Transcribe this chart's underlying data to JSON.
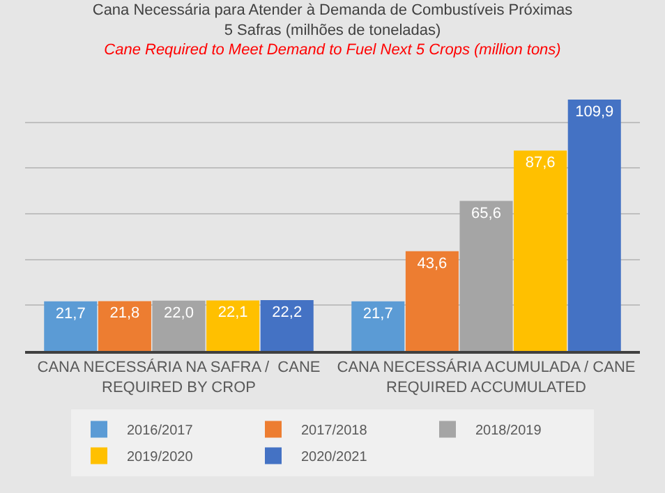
{
  "chart_data": {
    "type": "bar",
    "title": "Cana Necessária para Atender à Demanda de Combustíveis Próximas\n5 Safras (milhões de toneladas)",
    "subtitle": "Cane Required to Meet Demand to Fuel Next 5 Crops (million tons)",
    "categories": [
      "CANA NECESSÁRIA NA SAFRA /  CANE\nREQUIRED BY CROP",
      "CANA NECESSÁRIA ACUMULADA / CANE\nREQUIRED ACCUMULATED"
    ],
    "series": [
      {
        "name": "2016/2017",
        "color": "#5b9bd5",
        "values": [
          21.7,
          21.7
        ],
        "value_labels": [
          "21,7",
          "21,7"
        ]
      },
      {
        "name": "2017/2018",
        "color": "#ed7d31",
        "values": [
          21.8,
          43.6
        ],
        "value_labels": [
          "21,8",
          "43,6"
        ]
      },
      {
        "name": "2018/2019",
        "color": "#a5a5a5",
        "values": [
          22.0,
          65.6
        ],
        "value_labels": [
          "22,0",
          "65,6"
        ]
      },
      {
        "name": "2019/2020",
        "color": "#ffc000",
        "values": [
          22.1,
          87.6
        ],
        "value_labels": [
          "22,1",
          "87,6"
        ]
      },
      {
        "name": "2020/2021",
        "color": "#4472c4",
        "values": [
          22.2,
          109.9
        ],
        "value_labels": [
          "22,2",
          "109,9"
        ]
      }
    ],
    "tick_labels": "x",
    "grid": "y",
    "legend": "bottom"
  }
}
